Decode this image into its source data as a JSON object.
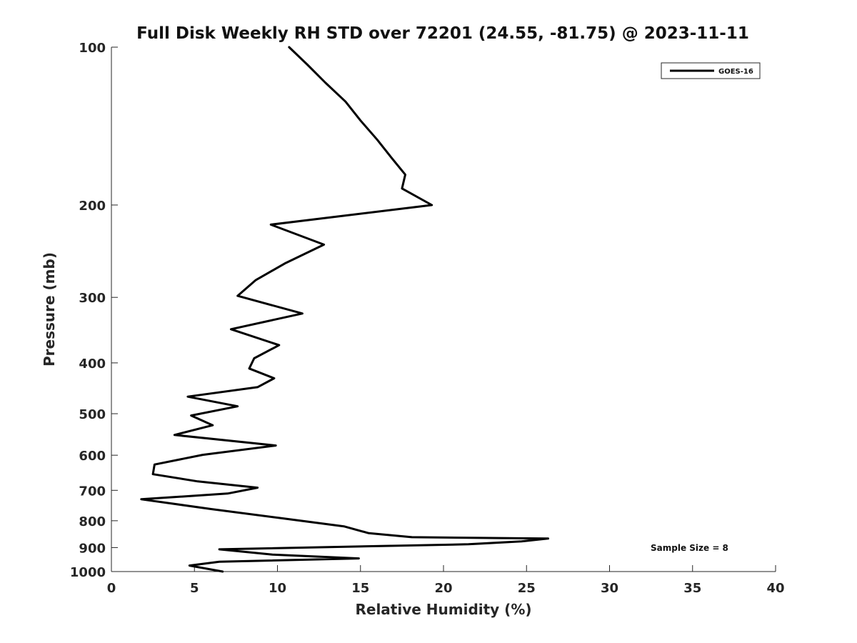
{
  "chart_data": {
    "type": "line",
    "title": "Full Disk Weekly RH STD over 72201 (24.55, -81.75) @ 2023-11-11",
    "xlabel": "Relative Humidity (%)",
    "ylabel": "Pressure (mb)",
    "xlim": [
      0,
      40
    ],
    "ylim": [
      100,
      1000
    ],
    "y_scale": "log",
    "y_direction": "reversed",
    "x_ticks": [
      "0",
      "5",
      "10",
      "15",
      "20",
      "25",
      "30",
      "35",
      "40"
    ],
    "y_ticks": [
      "100",
      "200",
      "300",
      "400",
      "500",
      "600",
      "700",
      "800",
      "900",
      "1000"
    ],
    "legend_position": "top-right",
    "annotation": "Sample Size = 8",
    "series": [
      {
        "name": "GOES-16",
        "color": "#000000",
        "x": [
          10.7,
          11.8,
          12.9,
          14.1,
          15.0,
          16.0,
          16.9,
          17.7,
          17.5,
          19.3,
          9.6,
          12.8,
          10.5,
          8.7,
          7.6,
          11.5,
          7.2,
          10.1,
          8.6,
          8.3,
          9.8,
          8.8,
          4.6,
          7.6,
          4.8,
          6.1,
          3.8,
          9.9,
          5.5,
          2.6,
          2.5,
          5.2,
          8.8,
          7.0,
          1.8,
          6.0,
          10.1,
          14.0,
          15.5,
          18.1,
          26.3,
          24.7,
          21.5,
          6.5,
          9.7,
          14.9,
          6.5,
          4.7,
          6.7
        ],
        "y": [
          100,
          108,
          117,
          127,
          138,
          150,
          163,
          175,
          186,
          200,
          218,
          238,
          258,
          278,
          298,
          322,
          345,
          370,
          392,
          410,
          428,
          445,
          464,
          484,
          504,
          526,
          549,
          575,
          599,
          625,
          652,
          673,
          692,
          710,
          728,
          760,
          790,
          820,
          845,
          860,
          865,
          876,
          887,
          907,
          928,
          944,
          958,
          974,
          1000
        ]
      }
    ]
  }
}
